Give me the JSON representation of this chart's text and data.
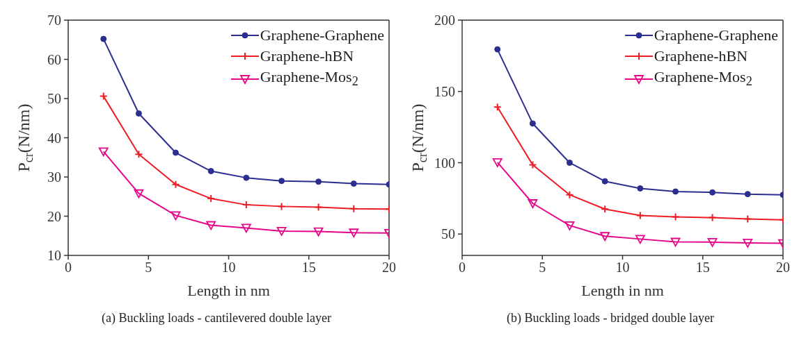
{
  "chart_data": [
    {
      "type": "line",
      "xlabel": "Length in nm",
      "ylabel": "P$_{cr}$(N/nm)",
      "annotations": [
        "(a) Buckling loads - cantilevered double layer"
      ],
      "x": [
        2.2,
        4.4,
        6.7,
        8.9,
        11.1,
        13.3,
        15.6,
        17.8,
        20
      ],
      "xlim": [
        0,
        20
      ],
      "xticks": [
        0,
        5,
        10,
        15,
        20
      ],
      "ylim": [
        10,
        70
      ],
      "yticks": [
        10,
        20,
        30,
        40,
        50,
        60,
        70
      ],
      "legend": "top right",
      "grid": false,
      "series": [
        {
          "name": "Graphene-Graphene",
          "color": "#2b2e8f",
          "marker": "circle",
          "values": [
            65.2,
            46.2,
            36.2,
            31.5,
            29.8,
            29.0,
            28.8,
            28.3,
            28.1
          ]
        },
        {
          "name": "Graphene-hBN",
          "color": "#ee1c24",
          "marker": "cross",
          "values": [
            50.6,
            35.8,
            28.1,
            24.5,
            22.9,
            22.5,
            22.3,
            21.9,
            21.8
          ]
        },
        {
          "name": "Graphene-Mos$_{2}$",
          "color": "#e6068a",
          "marker": "triangle",
          "values": [
            36.5,
            25.8,
            20.2,
            17.7,
            17.0,
            16.2,
            16.1,
            15.8,
            15.7
          ]
        }
      ]
    },
    {
      "type": "line",
      "xlabel": "Length in nm",
      "ylabel": "P$_{cr}$(N/nm)",
      "annotations": [
        "(b) Buckling loads - bridged double layer"
      ],
      "x": [
        2.2,
        4.4,
        6.7,
        8.9,
        11.1,
        13.3,
        15.6,
        17.8,
        20
      ],
      "xlim": [
        0,
        20
      ],
      "xticks": [
        0,
        5,
        10,
        15,
        20
      ],
      "ylim": [
        35,
        200
      ],
      "yticks": [
        50,
        100,
        150,
        200
      ],
      "legend": "top right",
      "grid": false,
      "series": [
        {
          "name": "Graphene-Graphene",
          "color": "#2b2e8f",
          "marker": "circle",
          "values": [
            179.5,
            127.5,
            100,
            87,
            82,
            79.8,
            79.2,
            78,
            77.5
          ]
        },
        {
          "name": "Graphene-hBN",
          "color": "#ee1c24",
          "marker": "cross",
          "values": [
            139,
            98.5,
            77.5,
            67.5,
            63,
            62,
            61.5,
            60.5,
            60
          ]
        },
        {
          "name": "Graphene-Mos$_{2}$",
          "color": "#e6068a",
          "marker": "triangle",
          "values": [
            100.3,
            71.5,
            56,
            48.5,
            46.5,
            44.5,
            44.3,
            43.8,
            43.5
          ]
        }
      ]
    }
  ]
}
